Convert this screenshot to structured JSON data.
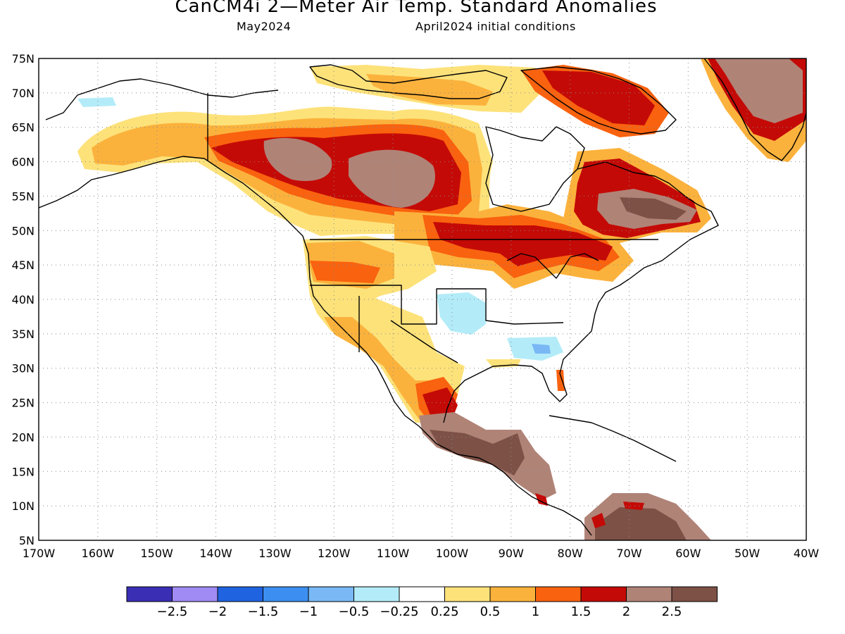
{
  "header": {
    "title": "CanCM4i 2—Meter Air Temp. Standard Anomalies",
    "valid_month": "May2024",
    "init": "April2024 initial conditions"
  },
  "map": {
    "lat_labels": [
      "75N",
      "70N",
      "65N",
      "60N",
      "55N",
      "50N",
      "45N",
      "40N",
      "35N",
      "30N",
      "25N",
      "20N",
      "15N",
      "10N",
      "5N"
    ],
    "lon_labels": [
      "170W",
      "160W",
      "150W",
      "140W",
      "130W",
      "120W",
      "110W",
      "100W",
      "90W",
      "80W",
      "70W",
      "60W",
      "50W",
      "40W"
    ],
    "lat_range": [
      5,
      75
    ],
    "lon_range": [
      -170,
      -40
    ],
    "grid": "dotted",
    "land_color": "#ffffff",
    "coastline_color": "#000000"
  },
  "colorbar": {
    "colors": [
      "#3a2fb4",
      "#a08bf5",
      "#1f63e0",
      "#3c8ff0",
      "#79b8f5",
      "#b3ecf8",
      "#ffffff",
      "#fde27a",
      "#fbb23c",
      "#f9620f",
      "#c40a06",
      "#b08377",
      "#7d5146"
    ],
    "labels": [
      "−2.5",
      "−2",
      "−1.5",
      "−1",
      "−0.5",
      "−0.25",
      "0.25",
      "0.5",
      "1",
      "1.5",
      "2",
      "2.5"
    ]
  }
}
